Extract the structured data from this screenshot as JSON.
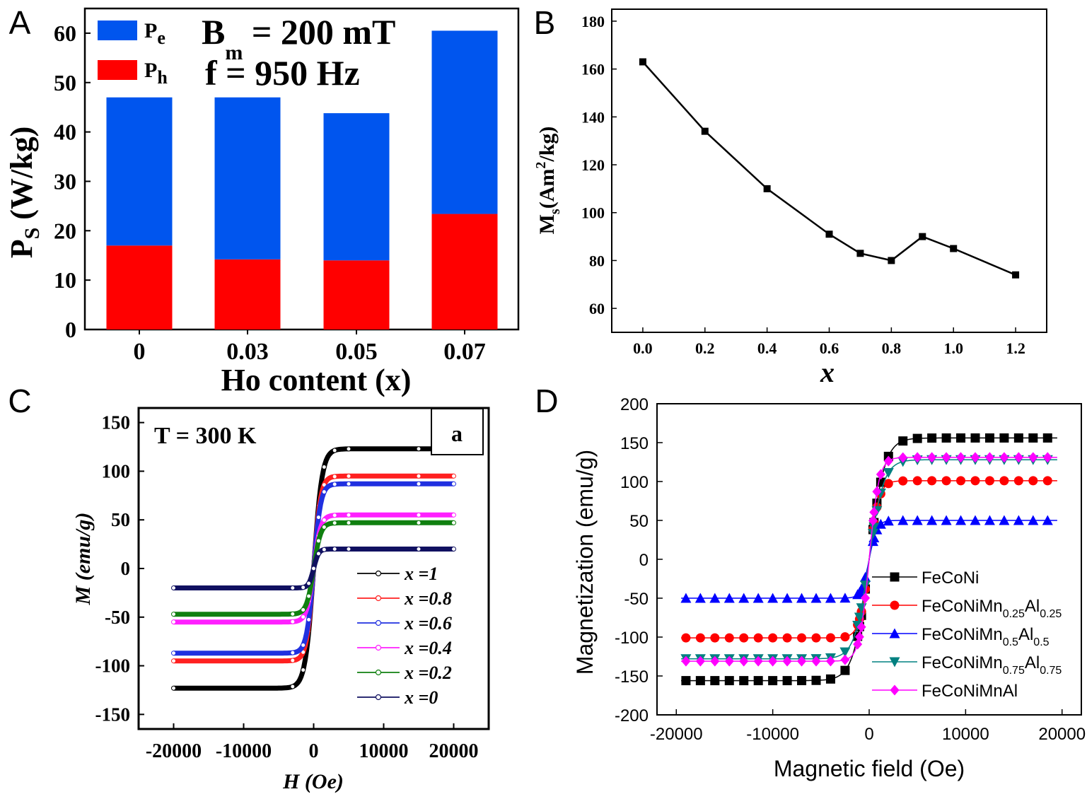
{
  "chart_data": [
    {
      "panel": "A",
      "type": "bar",
      "stacked": true,
      "categories": [
        "0",
        "0.03",
        "0.05",
        "0.07"
      ],
      "series": [
        {
          "name": "P_h",
          "label_main": "P",
          "label_sub": "h",
          "color": "#ff0000",
          "values": [
            17.0,
            14.2,
            14.0,
            23.4
          ]
        },
        {
          "name": "P_e",
          "label_main": "P",
          "label_sub": "e",
          "color": "#0055ee",
          "values": [
            30.0,
            32.8,
            29.8,
            37.1
          ]
        }
      ],
      "annotation": {
        "line1_main": "B",
        "line1_sub": "m",
        "line1_rest": " = 200 mT",
        "line2": "f = 950 Hz"
      },
      "xlabel": "Ho content (x)",
      "ylabel_main": "P",
      "ylabel_sub": "S",
      "ylabel_rest": " (W/kg)",
      "ylim": [
        0,
        65
      ],
      "yticks": [
        0,
        10,
        20,
        30,
        40,
        50,
        60
      ],
      "legend": "top-left"
    },
    {
      "panel": "B",
      "type": "line",
      "x": [
        0.0,
        0.2,
        0.4,
        0.6,
        0.7,
        0.8,
        0.9,
        1.0,
        1.2
      ],
      "y": [
        163,
        134,
        110,
        91,
        83,
        80,
        90,
        85,
        74
      ],
      "xlabel": "x",
      "ylabel_main": "M",
      "ylabel_sub": "s",
      "ylabel_rest": "(Am",
      "ylabel_sup": "2",
      "ylabel_end": "/kg)",
      "xlim": [
        -0.1,
        1.3
      ],
      "ylim": [
        50,
        185
      ],
      "xticks": [
        "0.0",
        "0.2",
        "0.4",
        "0.6",
        "0.8",
        "1.0",
        "1.2"
      ],
      "yticks": [
        60,
        80,
        100,
        120,
        140,
        160,
        180
      ],
      "color": "#000000"
    },
    {
      "panel": "C",
      "type": "line",
      "annotation": "T = 300 K",
      "inset_label": "a",
      "xlabel": "H (Oe)",
      "ylabel": "M (emu/g)",
      "xlim": [
        -25000,
        25000
      ],
      "ylim": [
        -165,
        165
      ],
      "xticks": [
        -20000,
        -10000,
        0,
        10000,
        20000
      ],
      "yticks": [
        -150,
        -100,
        -50,
        0,
        50,
        100,
        150
      ],
      "curve_model": "M = Ms * tanh(H / H0)",
      "series": [
        {
          "name": "x =1",
          "color": "#000000",
          "Ms": 123,
          "H0": 1200
        },
        {
          "name": "x =0.8",
          "color": "#ff2020",
          "Ms": 95,
          "H0": 1000
        },
        {
          "name": "x =0.6",
          "color": "#2030e0",
          "Ms": 87,
          "H0": 1000
        },
        {
          "name": "x =0.4",
          "color": "#ff20ff",
          "Ms": 55,
          "H0": 1000
        },
        {
          "name": "x =0.2",
          "color": "#108010",
          "Ms": 47,
          "H0": 1000
        },
        {
          "name": "x =0",
          "color": "#101060",
          "Ms": 20,
          "H0": 700
        }
      ],
      "legend": "bottom-right"
    },
    {
      "panel": "D",
      "type": "line",
      "xlabel": "Magnetic field (Oe)",
      "ylabel": "Magnetization (emu/g)",
      "xlim": [
        -22000,
        22000
      ],
      "ylim": [
        -200,
        200
      ],
      "xticks": [
        -20000,
        -10000,
        0,
        10000,
        20000
      ],
      "yticks": [
        -200,
        -150,
        -100,
        -50,
        0,
        50,
        100,
        150,
        200
      ],
      "curve_model": "M = Ms * tanh(H / H0)",
      "series": [
        {
          "name": "FeCoNi",
          "parts": [
            {
              "t": "FeCoNi"
            }
          ],
          "color": "#000000",
          "marker": "square",
          "Ms": 156,
          "H0": 1600
        },
        {
          "name": "FeCoNiMn0.25Al0.25",
          "parts": [
            {
              "t": "FeCoNiMn"
            },
            {
              "t": "0.25",
              "sub": true
            },
            {
              "t": "Al"
            },
            {
              "t": "0.25",
              "sub": true
            }
          ],
          "color": "#ff0000",
          "marker": "circle",
          "Ms": 101,
          "H0": 1000
        },
        {
          "name": "FeCoNiMn0.5Al0.5",
          "parts": [
            {
              "t": "FeCoNiMn"
            },
            {
              "t": "0.5",
              "sub": true
            },
            {
              "t": "Al"
            },
            {
              "t": "0.5",
              "sub": true
            }
          ],
          "color": "#0000ff",
          "marker": "triangle-up",
          "Ms": 50,
          "H0": 800
        },
        {
          "name": "FeCoNiMn0.75Al0.75",
          "parts": [
            {
              "t": "FeCoNiMn"
            },
            {
              "t": "0.75",
              "sub": true
            },
            {
              "t": "Al"
            },
            {
              "t": "0.75",
              "sub": true
            }
          ],
          "color": "#008080",
          "marker": "triangle-down",
          "Ms": 128,
          "H0": 1500
        },
        {
          "name": "FeCoNiMnAl",
          "parts": [
            {
              "t": "FeCoNiMnAl"
            }
          ],
          "color": "#ff00ff",
          "marker": "diamond",
          "Ms": 131,
          "H0": 1000
        }
      ],
      "legend": "bottom-right"
    }
  ],
  "panel_labels": [
    "A",
    "B",
    "C",
    "D"
  ]
}
